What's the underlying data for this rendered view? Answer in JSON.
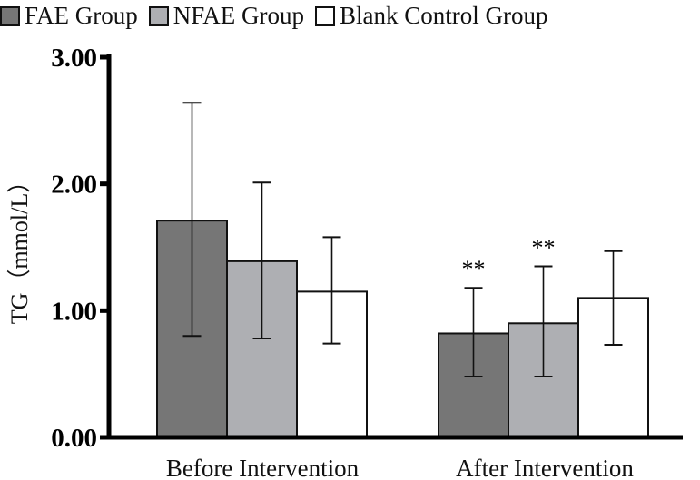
{
  "chart_data": {
    "type": "bar",
    "title": "",
    "xlabel": "",
    "ylabel": "TG（mmol/L）",
    "ylim": [
      0,
      3
    ],
    "yticks": [
      "0.00",
      "1.00",
      "2.00",
      "3.00"
    ],
    "categories": [
      "Before Intervention",
      "After Intervention"
    ],
    "legend_position": "top",
    "series": [
      {
        "name": "FAE Group",
        "color": "#767676",
        "values": [
          1.71,
          0.82
        ],
        "err_high": [
          2.64,
          1.18
        ],
        "err_low": [
          0.8,
          0.48
        ],
        "annotations": [
          "",
          "**"
        ]
      },
      {
        "name": "NFAE Group",
        "color": "#aeafb3",
        "values": [
          1.39,
          0.9
        ],
        "err_high": [
          2.01,
          1.35
        ],
        "err_low": [
          0.78,
          0.48
        ],
        "annotations": [
          "",
          "**"
        ]
      },
      {
        "name": "Blank Control Group",
        "color": "#ffffff",
        "values": [
          1.15,
          1.1
        ],
        "err_high": [
          1.58,
          1.47
        ],
        "err_low": [
          0.74,
          0.73
        ],
        "annotations": [
          "",
          ""
        ]
      }
    ]
  }
}
